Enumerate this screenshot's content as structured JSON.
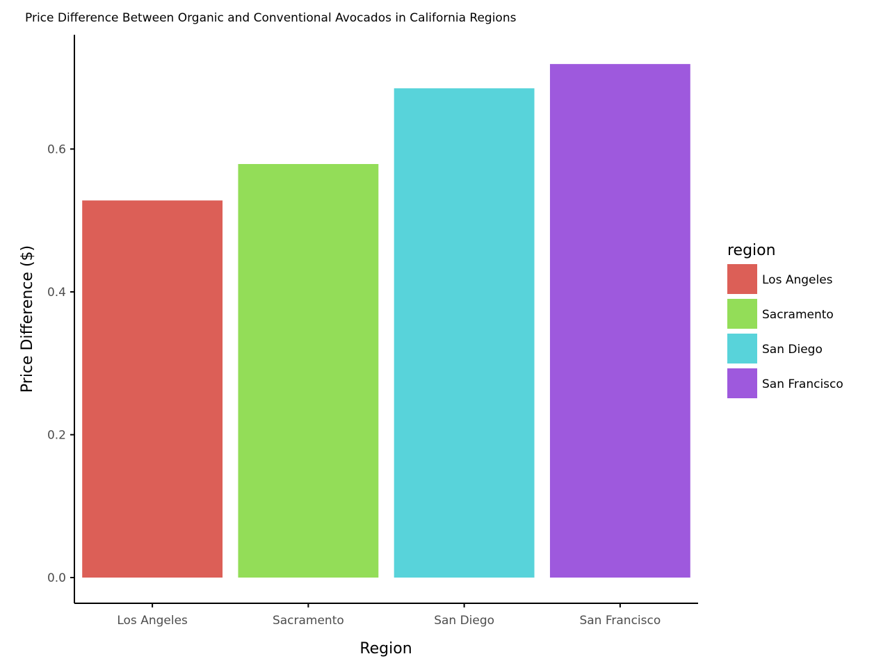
{
  "chart_data": {
    "type": "bar",
    "title": "Price Difference Between Organic and Conventional Avocados in California Regions",
    "xlabel": "Region",
    "ylabel": "Price Difference ($)",
    "categories": [
      "Los Angeles",
      "Sacramento",
      "San Diego",
      "San Francisco"
    ],
    "values": [
      0.528,
      0.579,
      0.685,
      0.719
    ],
    "colors": [
      "#DC5F57",
      "#93DD58",
      "#58D3DA",
      "#9E59DD"
    ],
    "ylim": [
      -0.036,
      0.76
    ],
    "yticks": [
      0.0,
      0.2,
      0.4,
      0.6
    ],
    "ytick_labels": [
      "0.0",
      "0.2",
      "0.4",
      "0.6"
    ],
    "grid": false,
    "legend": {
      "title": "region",
      "placement": "right",
      "entries": [
        "Los Angeles",
        "Sacramento",
        "San Diego",
        "San Francisco"
      ]
    }
  }
}
